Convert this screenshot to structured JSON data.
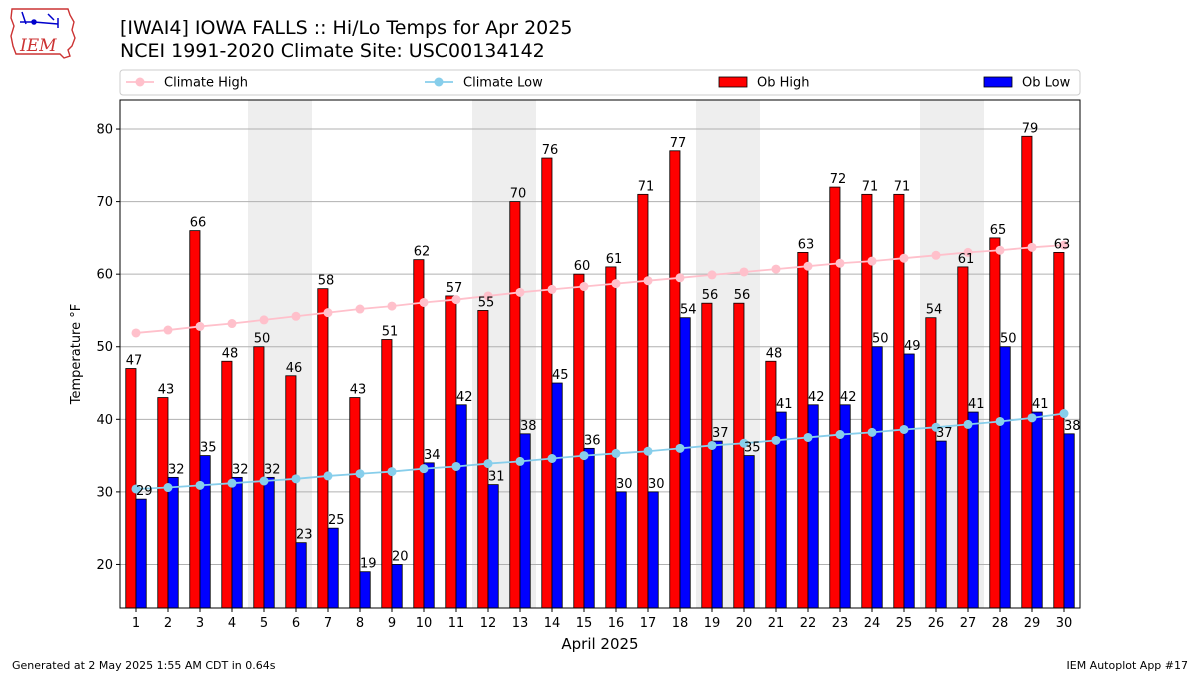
{
  "header": {
    "title_line1": "[IWAI4] IOWA FALLS :: Hi/Lo Temps for Apr 2025",
    "title_line2": "NCEI 1991-2020 Climate Site: USC00134142"
  },
  "logo": {
    "text": "IEM",
    "icon": "iowa-state-outline-logo"
  },
  "footer": {
    "generated": "Generated at 2 May 2025 1:55 AM CDT in 0.64s",
    "app": "IEM Autoplot App #17"
  },
  "chart_data": {
    "type": "bar",
    "xlabel": "April 2025",
    "ylabel": "Temperature °F",
    "ylim": [
      14,
      84
    ],
    "yticks": [
      20,
      30,
      40,
      50,
      60,
      70,
      80
    ],
    "grid": "horizontal",
    "legend_position": "top",
    "categories": [
      "1",
      "2",
      "3",
      "4",
      "5",
      "6",
      "7",
      "8",
      "9",
      "10",
      "11",
      "12",
      "13",
      "14",
      "15",
      "16",
      "17",
      "18",
      "19",
      "20",
      "21",
      "22",
      "23",
      "24",
      "25",
      "26",
      "27",
      "28",
      "29",
      "30"
    ],
    "weekend_shading_days": [
      [
        5,
        6
      ],
      [
        12,
        13
      ],
      [
        19,
        20
      ],
      [
        26,
        27
      ]
    ],
    "series": [
      {
        "name": "Ob High",
        "kind": "bar",
        "color": "#ff0000",
        "values": [
          47,
          43,
          66,
          48,
          50,
          46,
          58,
          43,
          51,
          62,
          57,
          55,
          70,
          76,
          60,
          61,
          71,
          77,
          56,
          56,
          48,
          63,
          72,
          71,
          71,
          54,
          61,
          65,
          79,
          63
        ]
      },
      {
        "name": "Ob Low",
        "kind": "bar",
        "color": "#0000ff",
        "values": [
          29,
          32,
          35,
          32,
          32,
          23,
          25,
          19,
          20,
          34,
          42,
          31,
          38,
          45,
          36,
          30,
          30,
          54,
          37,
          35,
          41,
          42,
          42,
          50,
          49,
          37,
          41,
          50,
          41,
          38
        ]
      },
      {
        "name": "Climate High",
        "kind": "line",
        "color": "#ffc0cb",
        "values": [
          51.9,
          52.3,
          52.8,
          53.2,
          53.7,
          54.2,
          54.7,
          55.2,
          55.6,
          56.1,
          56.5,
          57.0,
          57.5,
          57.9,
          58.3,
          58.7,
          59.1,
          59.5,
          59.9,
          60.3,
          60.7,
          61.1,
          61.5,
          61.8,
          62.2,
          62.6,
          63.0,
          63.3,
          63.7,
          64.0
        ]
      },
      {
        "name": "Climate Low",
        "kind": "line",
        "color": "#87ceeb",
        "values": [
          30.4,
          30.6,
          30.9,
          31.2,
          31.5,
          31.8,
          32.2,
          32.5,
          32.8,
          33.2,
          33.5,
          33.9,
          34.2,
          34.6,
          35.0,
          35.3,
          35.6,
          36.0,
          36.4,
          36.7,
          37.1,
          37.5,
          37.9,
          38.2,
          38.6,
          38.9,
          39.3,
          39.7,
          40.2,
          40.8
        ]
      }
    ]
  }
}
